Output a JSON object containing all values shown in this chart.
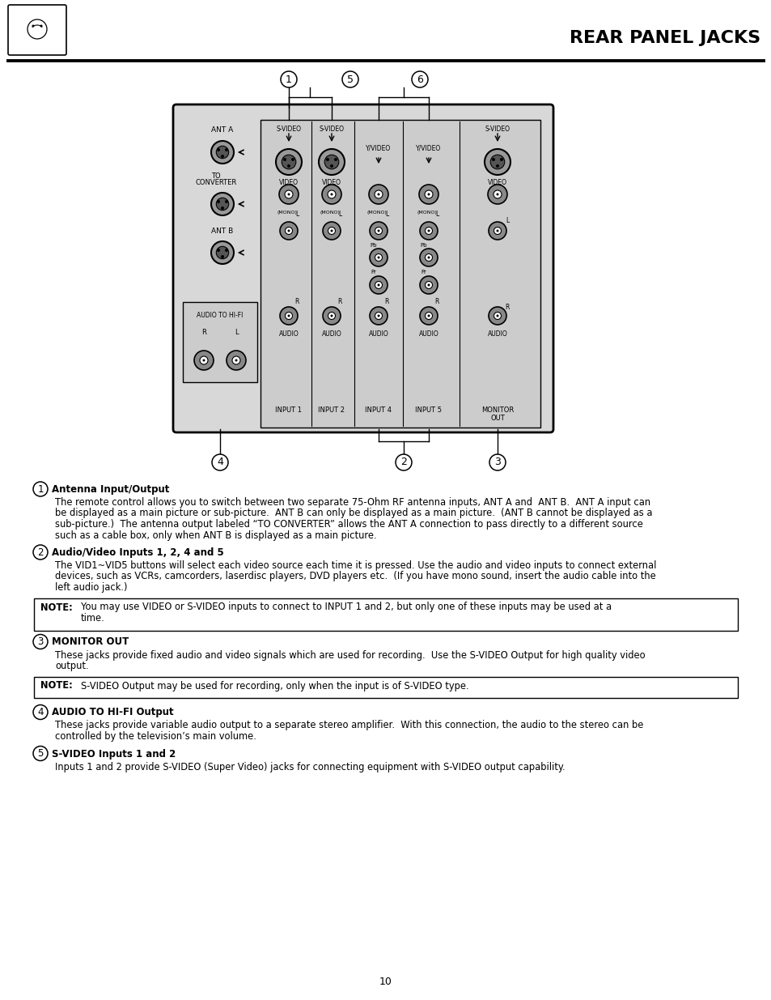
{
  "title": "REAR PANEL JACKS",
  "page_number": "10",
  "bg": "#ffffff",
  "section1_heading": "Antenna Input/Output",
  "section1_body": "The remote control allows you to switch between two separate 75-Ohm RF antenna inputs, ANT A and  ANT B.  ANT A input can\nbe displayed as a main picture or sub-picture.  ANT B can only be displayed as a main picture.  (ANT B cannot be displayed as a\nsub-picture.)  The antenna output labeled “TO CONVERTER” allows the ANT A connection to pass directly to a different source\nsuch as a cable box, only when ANT B is displayed as a main picture.",
  "section2_heading": "Audio/Video Inputs 1, 2, 4 and 5",
  "section2_body": "The VID1~VID5 buttons will select each video source each time it is pressed. Use the audio and video inputs to connect external\ndevices, such as VCRs, camcorders, laserdisc players, DVD players etc.  (If you have mono sound, insert the audio cable into the\nleft audio jack.)",
  "note1_label": "NOTE:",
  "note1_body": "You may use VIDEO or S-VIDEO inputs to connect to INPUT 1 and 2, but only one of these inputs may be used at a\ntime.",
  "section3_heading": "MONITOR OUT",
  "section3_body": "These jacks provide fixed audio and video signals which are used for recording.  Use the S-VIDEO Output for high quality video\noutput.",
  "note2_label": "NOTE:",
  "note2_body": "S-VIDEO Output may be used for recording, only when the input is of S-VIDEO type.",
  "section4_heading": "AUDIO TO HI-FI Output",
  "section4_body": "These jacks provide variable audio output to a separate stereo amplifier.  With this connection, the audio to the stereo can be\ncontrolled by the television’s main volume.",
  "section5_heading": "S-VIDEO Inputs 1 and 2",
  "section5_body": "Inputs 1 and 2 provide S-VIDEO (Super Video) jacks for connecting equipment with S-VIDEO output capability."
}
